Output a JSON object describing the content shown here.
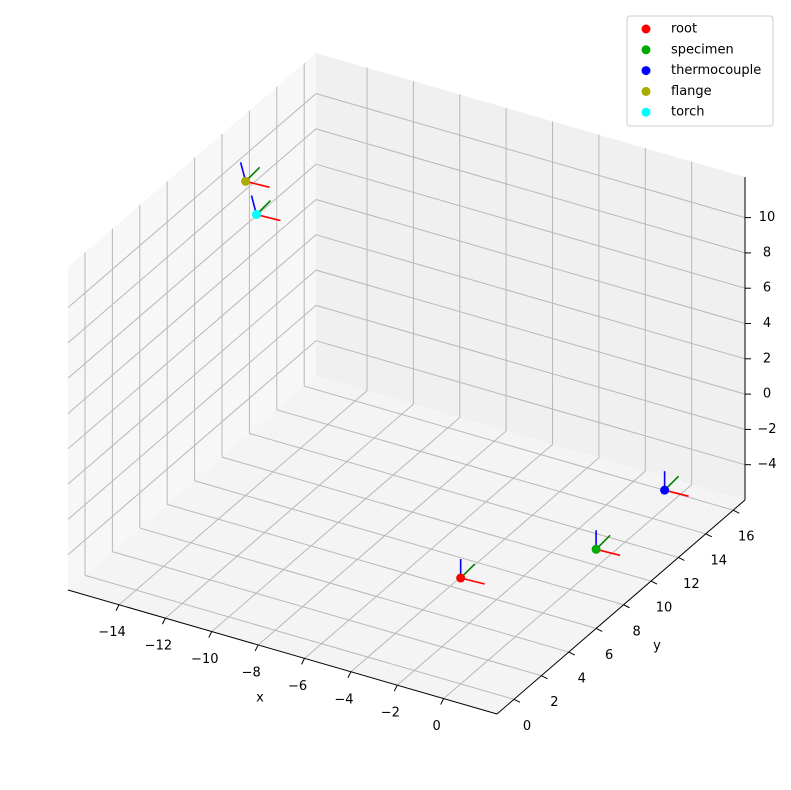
{
  "chart_data": {
    "type": "scatter3d",
    "xlabel": "x",
    "ylabel": "y",
    "xlim": [
      -16.2,
      2.3
    ],
    "ylim": [
      -1.24,
      16.86
    ],
    "zlim": [
      -6,
      12.3
    ],
    "xticks": [
      -14,
      -12,
      -10,
      -8,
      -6,
      -4,
      -2,
      0
    ],
    "yticks": [
      0,
      2,
      4,
      6,
      8,
      10,
      12,
      14,
      16
    ],
    "zticks": [
      -4,
      -2,
      0,
      2,
      4,
      6,
      8,
      10
    ],
    "grid": true,
    "legend": "upper right",
    "series": [
      {
        "name": "root",
        "color": "#ff0000",
        "x": 0,
        "y": 0,
        "z": 0
      },
      {
        "name": "specimen",
        "color": "#00aa00",
        "x": 3.3,
        "y": 4.3,
        "z": 0
      },
      {
        "name": "thermocouple",
        "color": "#0000ff",
        "x": 3.3,
        "y": 9.3,
        "z": 0
      },
      {
        "name": "flange",
        "color": "#aaaa00",
        "x": -14,
        "y": 8,
        "z": 11.8
      },
      {
        "name": "torch",
        "color": "#00ffff",
        "x": -13,
        "y": 7.1,
        "z": 10.9
      }
    ]
  }
}
